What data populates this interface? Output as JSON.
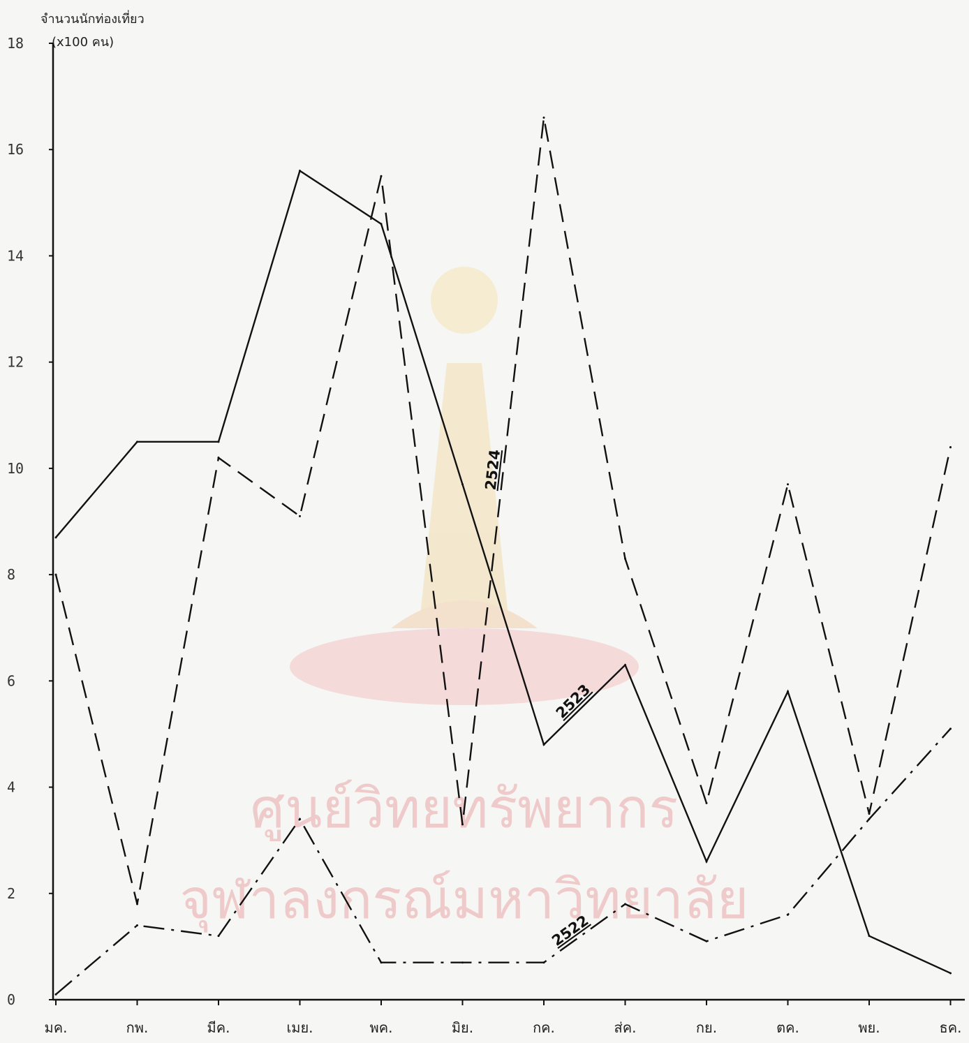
{
  "chart_data": {
    "type": "line",
    "title": "",
    "ylabel": "จำนวนนักท่องเที่ยว",
    "ylabel_unit": "(x100 คน)",
    "xlabel": "",
    "ylim": [
      0,
      18
    ],
    "yticks": [
      0,
      2,
      4,
      6,
      8,
      10,
      12,
      14,
      16,
      18
    ],
    "categories": [
      "มค.",
      "กพ.",
      "มีค.",
      "เมย.",
      "พค.",
      "มิย.",
      "กค.",
      "ส่ค.",
      "กย.",
      "ตค.",
      "พย.",
      "ธค."
    ],
    "grid": false,
    "legend": "inline labels",
    "series": [
      {
        "name": "2523",
        "style": "solid",
        "values": [
          8.7,
          10.5,
          10.5,
          15.6,
          14.6,
          9.7,
          4.8,
          6.3,
          2.6,
          5.8,
          1.2,
          0.5
        ]
      },
      {
        "name": "2524",
        "style": "dashed",
        "values": [
          8.0,
          1.8,
          10.2,
          9.1,
          15.5,
          3.3,
          16.6,
          8.3,
          3.7,
          9.7,
          3.5,
          10.4
        ]
      },
      {
        "name": "2522",
        "style": "dash-dot",
        "values": [
          0.1,
          1.4,
          1.2,
          3.4,
          0.7,
          0.7,
          0.7,
          1.8,
          1.1,
          1.6,
          3.4,
          5.1
        ]
      }
    ]
  },
  "watermark": {
    "line1": "ศูนย์วิทยทรัพยากร",
    "line2": "จุฬาลงกรณ์มหาวิทยาลัย"
  },
  "colors": {
    "line": "#111111",
    "watermark": "#e9a9a9"
  }
}
